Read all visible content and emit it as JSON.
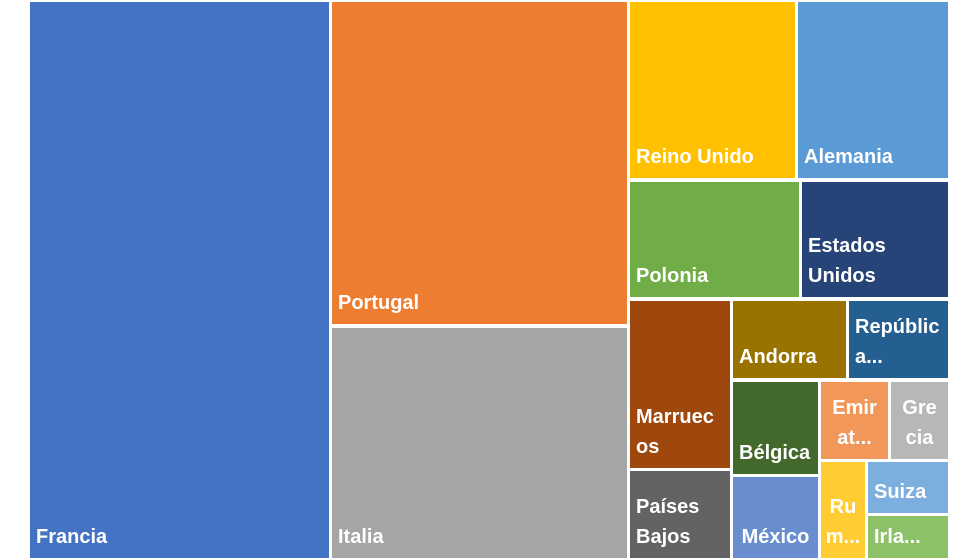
{
  "chart_data": {
    "type": "treemap",
    "title": "",
    "items": [
      {
        "label": "Francia",
        "value": 100,
        "color": "#4472C4"
      },
      {
        "label": "Portugal",
        "value": 34,
        "color": "#ED7D31"
      },
      {
        "label": "Italia",
        "value": 27,
        "color": "#A5A5A5"
      },
      {
        "label": "Reino Unido",
        "value": 10,
        "color": "#FFC000"
      },
      {
        "label": "Alemania",
        "value": 9,
        "color": "#5B9BD5"
      },
      {
        "label": "Polonia",
        "value": 7,
        "color": "#70AD47"
      },
      {
        "label": "Estados\nUnidos",
        "value": 6.5,
        "color": "#264478"
      },
      {
        "label": "Marruec\nos",
        "value": 5.5,
        "color": "#9E480E"
      },
      {
        "label": "Andorra",
        "value": 4,
        "color": "#997300"
      },
      {
        "label": "Repúblic\na...",
        "value": 3.5,
        "color": "#255E91"
      },
      {
        "label": "Países\nBajos",
        "value": 3,
        "color": "#636363"
      },
      {
        "label": "Bélgica",
        "value": 3.5,
        "color": "#43682B"
      },
      {
        "label": "México",
        "value": 2.8,
        "color": "#698ED0"
      },
      {
        "label": "Emir\nat...",
        "value": 2,
        "color": "#F1975A"
      },
      {
        "label": "Gre\ncia",
        "value": 1.5,
        "color": "#B7B7B7"
      },
      {
        "label": "Ru\nm...",
        "value": 1.3,
        "color": "#FFCD33"
      },
      {
        "label": "Suiza",
        "value": 1.2,
        "color": "#7CAFDD"
      },
      {
        "label": "Irla...",
        "value": 1,
        "color": "#8CC168"
      }
    ]
  }
}
